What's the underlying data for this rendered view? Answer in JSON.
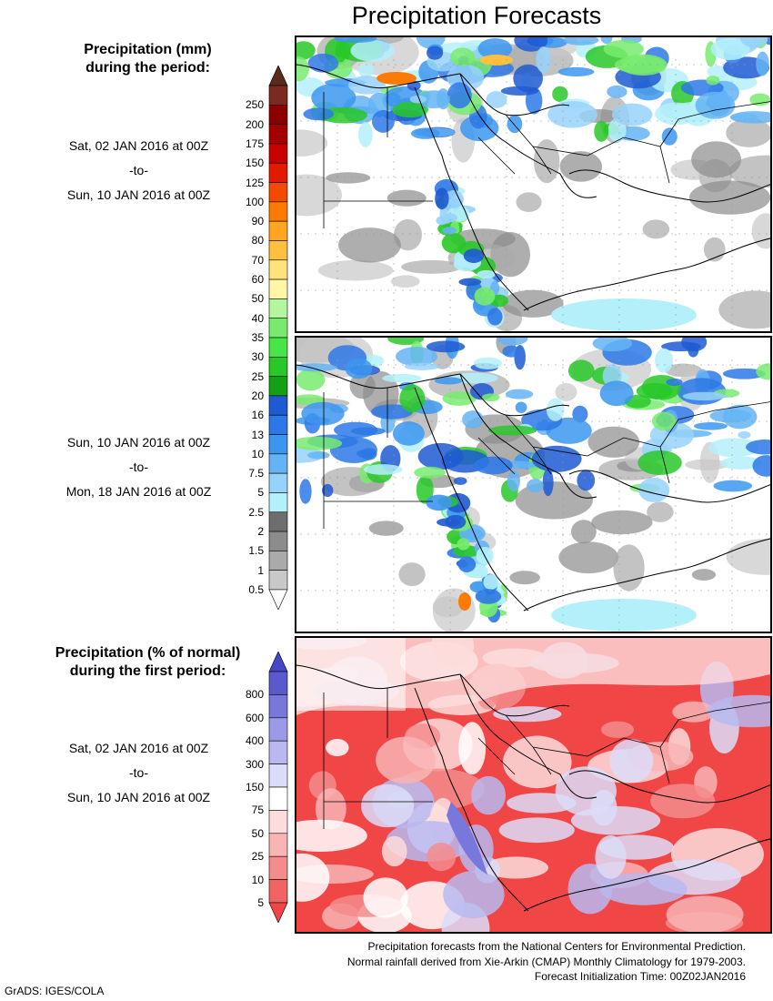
{
  "title": "Precipitation Forecasts",
  "section1": {
    "heading_line1": "Precipitation (mm)",
    "heading_line2": "during the period:",
    "period_a": {
      "start": "Sat, 02 JAN 2016 at 00Z",
      "sep": "-to-",
      "end": "Sun, 10 JAN 2016 at 00Z"
    },
    "period_b": {
      "start": "Sun, 10 JAN 2016 at 00Z",
      "sep": "-to-",
      "end": "Mon, 18 JAN 2016 at 00Z"
    }
  },
  "section2": {
    "heading_line1": "Precipitation (% of normal)",
    "heading_line2": "during the first period:",
    "period": {
      "start": "Sat, 02 JAN 2016 at 00Z",
      "sep": "-to-",
      "end": "Sun, 10 JAN 2016 at 00Z"
    }
  },
  "mm_legend": {
    "labels": [
      "250",
      "200",
      "175",
      "150",
      "125",
      "100",
      "90",
      "80",
      "70",
      "60",
      "50",
      "40",
      "35",
      "30",
      "25",
      "20",
      "16",
      "13",
      "10",
      "7.5",
      "5",
      "2.5",
      "2",
      "1.5",
      "1",
      "0.5"
    ],
    "colors": [
      "#7b2a1d",
      "#8c0000",
      "#a50000",
      "#c80000",
      "#e21a00",
      "#f24a00",
      "#ff7a00",
      "#ffa51f",
      "#ffc040",
      "#ffe37a",
      "#fff6a8",
      "#b4f5a0",
      "#78eb6e",
      "#46e646",
      "#28c828",
      "#14a014",
      "#1e5ad2",
      "#2d78e6",
      "#3c96f0",
      "#64b4f5",
      "#96d2fa",
      "#b4f0fa",
      "#6e6e6e",
      "#8c8c8c",
      "#aaaaaa",
      "#c8c8c8"
    ],
    "top_cap_color": "#5a2a1a",
    "bottom_cap_color": "#ffffff"
  },
  "pct_legend": {
    "labels": [
      "800",
      "600",
      "400",
      "300",
      "150",
      "75",
      "50",
      "25",
      "10",
      "5"
    ],
    "colors": [
      "#5a5acd",
      "#7878dc",
      "#9a9ae6",
      "#b9b9f0",
      "#dcdcf8",
      "#ffffff",
      "#fcdcdc",
      "#f9b4b4",
      "#f58c8c",
      "#f06464"
    ],
    "top_cap_color": "#4646c8",
    "bottom_cap_color": "#f04646"
  },
  "footer": {
    "line1": "Precipitation forecasts from the National Centers for Environmental Prediction.",
    "line2": "Normal rainfall derived from Xie-Arkin (CMAP) Monthly Climatology for 1979-2003.",
    "line3": "Forecast Initialization Time: 00Z02JAN2016"
  },
  "credit": "GrADS: IGES/COLA",
  "maps": [
    {
      "name": "week1-precip-map",
      "kind": "mm"
    },
    {
      "name": "week2-precip-map",
      "kind": "mm"
    },
    {
      "name": "percent-normal-map",
      "kind": "pct"
    }
  ]
}
